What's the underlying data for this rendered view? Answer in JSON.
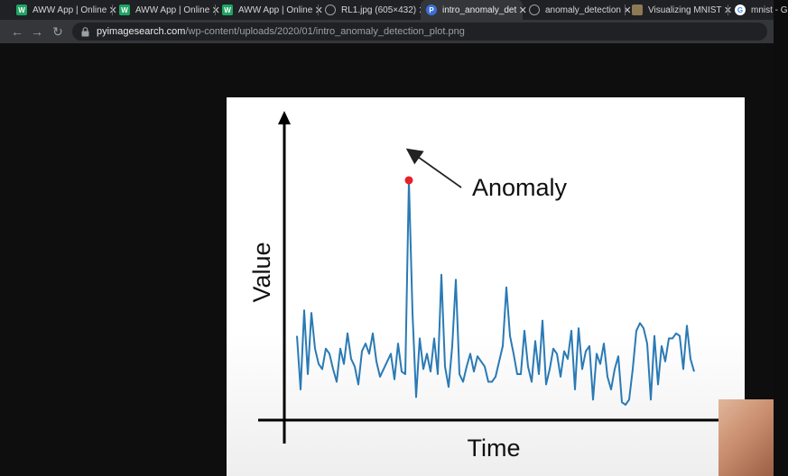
{
  "browser": {
    "tabs": [
      {
        "title": "AWW App | Online",
        "favicon": "aww-icon",
        "active": false
      },
      {
        "title": "AWW App | Online",
        "favicon": "aww-icon",
        "active": false
      },
      {
        "title": "AWW App | Online",
        "favicon": "aww-icon",
        "active": false
      },
      {
        "title": "RL1.jpg (605×432)",
        "favicon": "globe-icon",
        "active": false
      },
      {
        "title": "intro_anomaly_det",
        "favicon": "pyimagesearch-icon",
        "active": true
      },
      {
        "title": "anomaly_detection",
        "favicon": "globe-icon",
        "active": false
      },
      {
        "title": "Visualizing MNIST",
        "favicon": "page-icon",
        "active": false
      },
      {
        "title": "mnist - G",
        "favicon": "google-icon",
        "active": false
      }
    ],
    "url_host": "pyimagesearch.com",
    "url_path": "/wp-content/uploads/2020/01/intro_anomaly_detection_plot.png",
    "colors": {
      "tabstrip": "#202124",
      "toolbar": "#35363a",
      "omnibox": "#202124",
      "page_bg": "#0e0e0e"
    }
  },
  "figure": {
    "ylabel": "Value",
    "xlabel": "Time",
    "annotation": "Anomaly",
    "line_color": "#2a7ab5",
    "anomaly_color": "#e8202a"
  },
  "chart_data": {
    "type": "line",
    "title": "",
    "xlabel": "Time",
    "ylabel": "Value",
    "grid": false,
    "values": [
      0.27,
      0.06,
      0.37,
      0.12,
      0.36,
      0.22,
      0.16,
      0.14,
      0.22,
      0.2,
      0.14,
      0.09,
      0.22,
      0.16,
      0.28,
      0.18,
      0.15,
      0.08,
      0.21,
      0.24,
      0.2,
      0.28,
      0.17,
      0.11,
      0.14,
      0.17,
      0.2,
      0.1,
      0.24,
      0.13,
      0.12,
      0.88,
      0.36,
      0.03,
      0.26,
      0.14,
      0.2,
      0.13,
      0.26,
      0.12,
      0.51,
      0.15,
      0.07,
      0.23,
      0.49,
      0.12,
      0.09,
      0.15,
      0.2,
      0.13,
      0.19,
      0.17,
      0.15,
      0.09,
      0.09,
      0.11,
      0.17,
      0.23,
      0.46,
      0.27,
      0.2,
      0.12,
      0.12,
      0.29,
      0.15,
      0.09,
      0.25,
      0.12,
      0.33,
      0.08,
      0.14,
      0.22,
      0.2,
      0.11,
      0.21,
      0.18,
      0.29,
      0.06,
      0.3,
      0.14,
      0.21,
      0.23,
      0.02,
      0.2,
      0.16,
      0.24,
      0.11,
      0.06,
      0.14,
      0.19,
      0.01,
      0.0,
      0.02,
      0.14,
      0.29,
      0.32,
      0.3,
      0.24,
      0.02,
      0.27,
      0.08,
      0.23,
      0.17,
      0.26,
      0.26,
      0.28,
      0.27,
      0.14,
      0.31,
      0.18,
      0.13
    ],
    "anomaly_index": 31,
    "ylim": [
      0,
      1
    ]
  }
}
